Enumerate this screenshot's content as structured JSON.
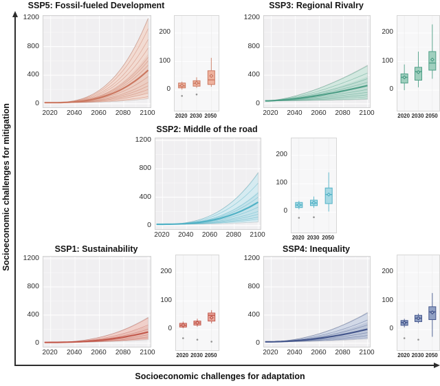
{
  "figure": {
    "x_axis_label": "Socioeconomic challenges for adaptation",
    "y_axis_label": "Socioeconomic challenges for mitigation",
    "plot_bg": "#f0eff1",
    "box_bg": "#f7f7f8",
    "grid": "#ffffff",
    "axis_color": "#2d2d2d"
  },
  "chart_data": [
    {
      "id": "ssp5",
      "title": "SSP5: Fossil-fueled Development",
      "color": "#cb7861",
      "band_fill": "#f2dbd2",
      "box_fill": "#eeb29e",
      "line_chart": {
        "type": "line",
        "x_ticks": [
          2020,
          2040,
          2060,
          2080,
          2100
        ],
        "y_ticks": [
          0,
          400,
          800,
          1200
        ],
        "xlim": [
          2014,
          2102
        ],
        "ylim": [
          -50,
          1230
        ],
        "x_start": 2015,
        "x_end": 2100,
        "start_value": 15,
        "curve_exponent": 3,
        "envelope_2100": [
          70,
          1200
        ],
        "inner_envelope_2100": [
          150,
          700
        ],
        "main_line_2100": 470,
        "member_lines_2100": [
          1190,
          1050,
          900,
          780,
          650,
          600,
          540,
          470,
          380,
          300,
          250,
          200,
          150,
          100
        ]
      },
      "box_chart": {
        "type": "box",
        "categories": [
          "2020",
          "2030",
          "2050"
        ],
        "y_ticks": [
          0,
          100,
          200
        ],
        "ylim": [
          -72,
          260
        ],
        "boxes": [
          {
            "label": "2020",
            "whisker_low": 2,
            "q1": 8,
            "median": 15,
            "q3": 25,
            "whisker_high": 30,
            "mean": 16,
            "outliers": [
              -20
            ]
          },
          {
            "label": "2030",
            "whisker_low": 8,
            "q1": 14,
            "median": 24,
            "q3": 33,
            "whisker_high": 45,
            "mean": 25,
            "outliers": [
              -15
            ]
          },
          {
            "label": "2050",
            "whisker_low": 12,
            "q1": 20,
            "median": 36,
            "q3": 68,
            "whisker_high": 113,
            "mean": 50,
            "outliers": []
          }
        ]
      }
    },
    {
      "id": "ssp3",
      "title": "SSP3: Regional Rivalry",
      "color": "#4d9e86",
      "band_fill": "#d3e8e0",
      "box_fill": "#9fcfbe",
      "line_chart": {
        "type": "line",
        "x_ticks": [
          2020,
          2040,
          2060,
          2080,
          2100
        ],
        "y_ticks": [
          0,
          400,
          800,
          1200
        ],
        "xlim": [
          2014,
          2102
        ],
        "ylim": [
          -50,
          1230
        ],
        "x_start": 2015,
        "x_end": 2100,
        "start_value": 40,
        "curve_exponent": 1.6,
        "envelope_2100": [
          60,
          540
        ],
        "inner_envelope_2100": [
          100,
          380
        ],
        "main_line_2100": 255,
        "member_lines_2100": [
          530,
          430,
          350,
          300,
          255,
          200,
          160,
          125,
          95,
          70
        ]
      },
      "box_chart": {
        "type": "box",
        "categories": [
          "2020",
          "2030",
          "2050"
        ],
        "y_ticks": [
          0,
          100,
          200
        ],
        "ylim": [
          -72,
          260
        ],
        "boxes": [
          {
            "label": "2020",
            "whisker_low": 0,
            "q1": 25,
            "median": 45,
            "q3": 57,
            "whisker_high": 90,
            "mean": 45,
            "outliers": []
          },
          {
            "label": "2030",
            "whisker_low": 10,
            "q1": 35,
            "median": 65,
            "q3": 80,
            "whisker_high": 135,
            "mean": 63,
            "outliers": []
          },
          {
            "label": "2050",
            "whisker_low": 40,
            "q1": 70,
            "median": 95,
            "q3": 135,
            "whisker_high": 230,
            "mean": 107,
            "outliers": []
          }
        ]
      }
    },
    {
      "id": "ssp2",
      "title": "SSP2: Middle of the road",
      "color": "#52b2c6",
      "band_fill": "#d6ebf1",
      "box_fill": "#a6d9e4",
      "line_chart": {
        "type": "line",
        "x_ticks": [
          2020,
          2040,
          2060,
          2080,
          2100
        ],
        "y_ticks": [
          0,
          400,
          800,
          1200
        ],
        "xlim": [
          2014,
          2102
        ],
        "ylim": [
          -50,
          1230
        ],
        "x_start": 2015,
        "x_end": 2100,
        "start_value": 18,
        "curve_exponent": 2.8,
        "envelope_2100": [
          50,
          750
        ],
        "inner_envelope_2100": [
          100,
          480
        ],
        "main_line_2100": 330,
        "member_lines_2100": [
          740,
          600,
          460,
          400,
          330,
          260,
          200,
          160,
          120,
          90
        ]
      },
      "box_chart": {
        "type": "box",
        "categories": [
          "2020",
          "2030",
          "2050"
        ],
        "y_ticks": [
          0,
          100,
          200
        ],
        "ylim": [
          -72,
          260
        ],
        "boxes": [
          {
            "label": "2020",
            "whisker_low": 10,
            "q1": 16,
            "median": 25,
            "q3": 34,
            "whisker_high": 40,
            "mean": 25,
            "outliers": [
              -20
            ]
          },
          {
            "label": "2030",
            "whisker_low": 15,
            "q1": 23,
            "median": 32,
            "q3": 42,
            "whisker_high": 55,
            "mean": 33,
            "outliers": [
              -18
            ]
          },
          {
            "label": "2050",
            "whisker_low": 2,
            "q1": 30,
            "median": 62,
            "q3": 85,
            "whisker_high": 140,
            "mean": 62,
            "outliers": []
          }
        ]
      }
    },
    {
      "id": "ssp1",
      "title": "SSP1: Sustainability",
      "color": "#c25a4d",
      "band_fill": "#f0d0ca",
      "box_fill": "#e8a69c",
      "line_chart": {
        "type": "line",
        "x_ticks": [
          2020,
          2040,
          2060,
          2080,
          2100
        ],
        "y_ticks": [
          0,
          400,
          800,
          1200
        ],
        "xlim": [
          2014,
          2102
        ],
        "ylim": [
          -50,
          1230
        ],
        "x_start": 2015,
        "x_end": 2100,
        "start_value": 12,
        "curve_exponent": 2.5,
        "envelope_2100": [
          50,
          370
        ],
        "inner_envelope_2100": [
          70,
          250
        ],
        "main_line_2100": 160,
        "member_lines_2100": [
          360,
          260,
          200,
          160,
          120,
          90,
          70
        ]
      },
      "box_chart": {
        "type": "box",
        "categories": [
          "2020",
          "2030",
          "2050"
        ],
        "y_ticks": [
          0,
          100,
          200
        ],
        "ylim": [
          -72,
          260
        ],
        "boxes": [
          {
            "label": "2020",
            "whisker_low": 5,
            "q1": 9,
            "median": 15,
            "q3": 22,
            "whisker_high": 28,
            "mean": 16,
            "outliers": [
              -30
            ]
          },
          {
            "label": "2030",
            "whisker_low": 10,
            "q1": 16,
            "median": 23,
            "q3": 30,
            "whisker_high": 38,
            "mean": 24,
            "outliers": [
              -35
            ]
          },
          {
            "label": "2050",
            "whisker_low": 22,
            "q1": 30,
            "median": 50,
            "q3": 58,
            "whisker_high": 68,
            "mean": 42,
            "outliers": [
              -42
            ]
          }
        ]
      }
    },
    {
      "id": "ssp4",
      "title": "SSP4: Inequality",
      "color": "#44568c",
      "band_fill": "#d2d9e7",
      "box_fill": "#91a1c4",
      "line_chart": {
        "type": "line",
        "x_ticks": [
          2020,
          2040,
          2060,
          2080,
          2100
        ],
        "y_ticks": [
          0,
          400,
          800,
          1200
        ],
        "xlim": [
          2014,
          2102
        ],
        "ylim": [
          -50,
          1230
        ],
        "x_start": 2015,
        "x_end": 2100,
        "start_value": 20,
        "curve_exponent": 2,
        "envelope_2100": [
          60,
          440
        ],
        "inner_envelope_2100": [
          90,
          300
        ],
        "main_line_2100": 200,
        "member_lines_2100": [
          430,
          330,
          260,
          200,
          150,
          110,
          80
        ]
      },
      "box_chart": {
        "type": "box",
        "categories": [
          "2020",
          "2030",
          "2050"
        ],
        "y_ticks": [
          0,
          100,
          200
        ],
        "ylim": [
          -72,
          260
        ],
        "boxes": [
          {
            "label": "2020",
            "whisker_low": 8,
            "q1": 15,
            "median": 25,
            "q3": 32,
            "whisker_high": 38,
            "mean": 24,
            "outliers": [
              -30
            ]
          },
          {
            "label": "2030",
            "whisker_low": 22,
            "q1": 28,
            "median": 40,
            "q3": 50,
            "whisker_high": 56,
            "mean": 40,
            "outliers": [
              -35
            ]
          },
          {
            "label": "2050",
            "whisker_low": -25,
            "q1": 35,
            "median": 62,
            "q3": 80,
            "whisker_high": 128,
            "mean": 60,
            "outliers": []
          }
        ]
      }
    }
  ]
}
